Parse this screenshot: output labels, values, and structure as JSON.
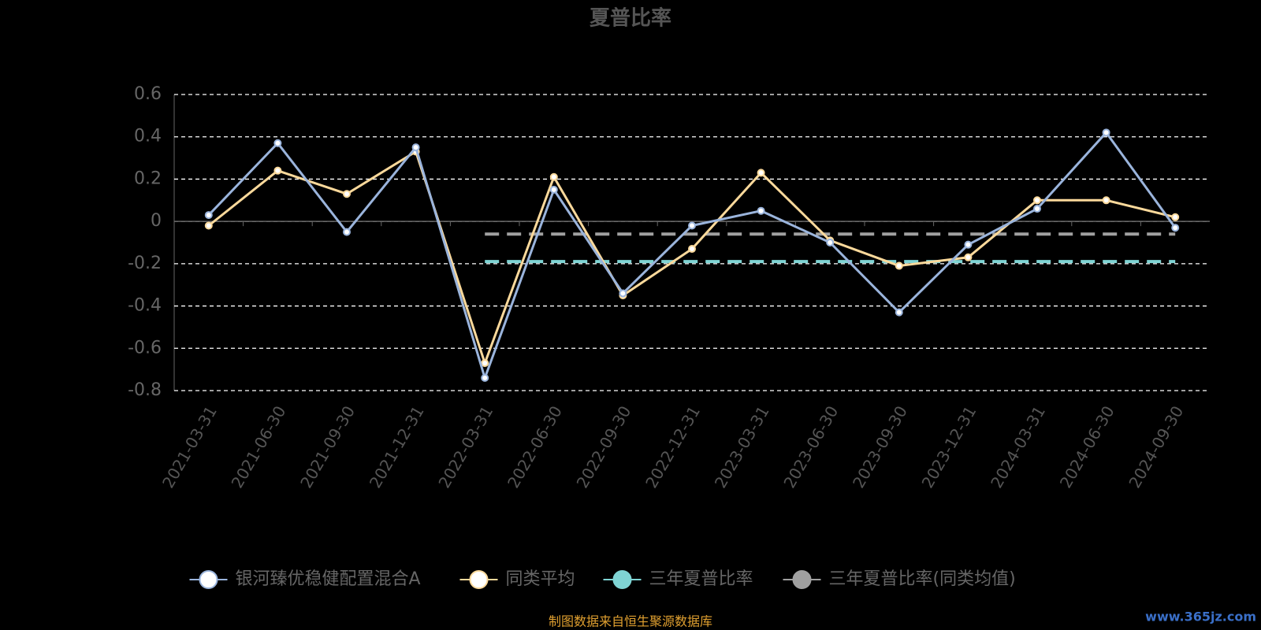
{
  "chart_data": {
    "type": "line",
    "title": "夏普比率",
    "categories": [
      "2021-03-31",
      "2021-06-30",
      "2021-09-30",
      "2021-12-31",
      "2022-03-31",
      "2022-06-30",
      "2022-09-30",
      "2022-12-31",
      "2023-03-31",
      "2023-06-30",
      "2023-09-30",
      "2023-12-31",
      "2024-03-31",
      "2024-06-30",
      "2024-09-30"
    ],
    "series": [
      {
        "name": "银河臻优稳健配置混合A",
        "color": "#9ab4dc",
        "values": [
          0.03,
          0.37,
          -0.05,
          0.35,
          -0.74,
          0.15,
          -0.34,
          -0.02,
          0.05,
          -0.1,
          -0.43,
          -0.11,
          0.06,
          0.42,
          -0.03
        ]
      },
      {
        "name": "同类平均",
        "color": "#fbd99b",
        "values": [
          -0.02,
          0.24,
          0.13,
          0.33,
          -0.67,
          0.21,
          -0.35,
          -0.13,
          0.23,
          -0.09,
          -0.21,
          -0.17,
          0.1,
          0.1,
          0.02
        ]
      },
      {
        "name": "三年夏普比率",
        "color": "#7fd4d4",
        "dashed": true,
        "values": [
          null,
          null,
          null,
          null,
          -0.19,
          -0.19,
          -0.19,
          -0.19,
          -0.19,
          -0.19,
          -0.19,
          -0.19,
          -0.19,
          -0.19,
          -0.19
        ]
      },
      {
        "name": "三年夏普比率(同类均值)",
        "color": "#a0a0a0",
        "dashed": true,
        "values": [
          null,
          null,
          null,
          null,
          -0.06,
          -0.06,
          -0.06,
          -0.06,
          -0.06,
          -0.06,
          -0.06,
          -0.06,
          -0.06,
          -0.06,
          -0.06
        ]
      }
    ],
    "ylim": [
      -0.8,
      0.6
    ],
    "yticks": [
      -0.8,
      -0.6,
      -0.4,
      -0.2,
      0,
      0.2,
      0.4,
      0.6
    ],
    "grid": true,
    "legend": "bottom",
    "source": "制图数据来自恒生聚源数据库",
    "watermark": "www.365jz.com"
  }
}
